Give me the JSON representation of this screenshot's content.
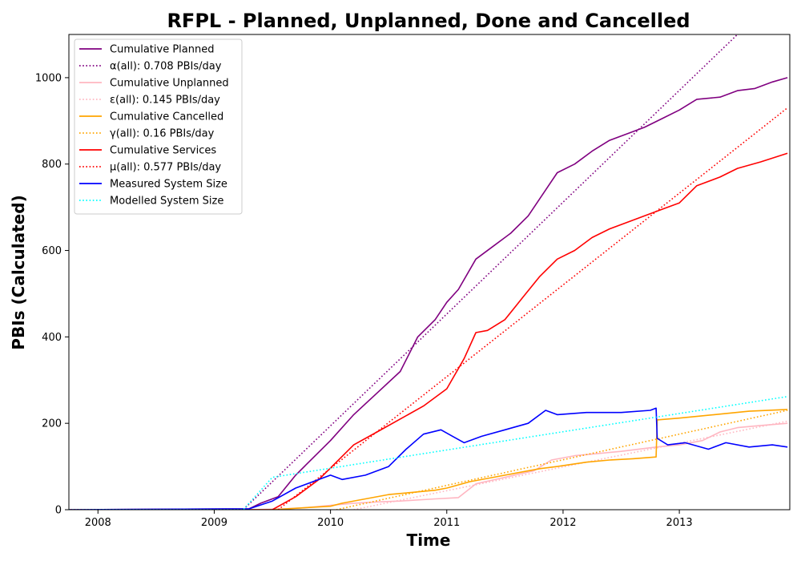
{
  "chart_data": {
    "type": "line",
    "title": "RFPL - Planned, Unplanned, Done  and Cancelled",
    "xlabel": "Time",
    "ylabel": "PBIs (Calculated)",
    "xlim": [
      2007.75,
      2013.95
    ],
    "ylim": [
      0,
      1100
    ],
    "x_ticks": [
      2008,
      2009,
      2010,
      2011,
      2012,
      2013
    ],
    "x_tick_labels": [
      "2008",
      "2009",
      "2010",
      "2011",
      "2012",
      "2013"
    ],
    "y_ticks": [
      0,
      200,
      400,
      600,
      800,
      1000
    ],
    "y_tick_labels": [
      "0",
      "200",
      "400",
      "600",
      "800",
      "1000"
    ],
    "grid": false,
    "legend_position": "upper-left",
    "series": [
      {
        "name": "Cumulative Planned",
        "color": "#800080",
        "style": "solid",
        "x": [
          2007.75,
          2009.3,
          2009.4,
          2009.55,
          2009.7,
          2009.85,
          2010.0,
          2010.2,
          2010.4,
          2010.6,
          2010.75,
          2010.9,
          2011.0,
          2011.1,
          2011.25,
          2011.4,
          2011.55,
          2011.7,
          2011.85,
          2011.95,
          2012.1,
          2012.25,
          2012.4,
          2012.55,
          2012.7,
          2012.85,
          2013.0,
          2013.15,
          2013.35,
          2013.5,
          2013.65,
          2013.8,
          2013.93
        ],
        "y": [
          0,
          2,
          15,
          30,
          80,
          120,
          160,
          220,
          270,
          320,
          400,
          440,
          480,
          510,
          580,
          610,
          640,
          680,
          740,
          780,
          800,
          830,
          855,
          870,
          885,
          905,
          925,
          950,
          955,
          970,
          975,
          990,
          1000
        ]
      },
      {
        "name": "α(all): 0.708 PBIs/day",
        "color": "#800080",
        "style": "dotted",
        "x": [
          2009.25,
          2013.5
        ],
        "y": [
          0,
          1100
        ]
      },
      {
        "name": "Cumulative Unplanned",
        "color": "#ffb6c1",
        "style": "solid",
        "x": [
          2007.75,
          2009.3,
          2009.6,
          2009.8,
          2010.0,
          2010.2,
          2010.4,
          2010.6,
          2010.9,
          2011.1,
          2011.25,
          2011.5,
          2011.75,
          2011.9,
          2012.1,
          2012.3,
          2012.5,
          2012.8,
          2013.0,
          2013.2,
          2013.35,
          2013.5,
          2013.7,
          2013.93
        ],
        "y": [
          0,
          0,
          2,
          5,
          10,
          15,
          18,
          20,
          25,
          28,
          60,
          75,
          90,
          115,
          125,
          130,
          135,
          145,
          150,
          160,
          180,
          190,
          195,
          200
        ]
      },
      {
        "name": "ε(all): 0.145 PBIs/day",
        "color": "#ffb6c1",
        "style": "dotted",
        "x": [
          2010.2,
          2013.93
        ],
        "y": [
          0,
          205
        ]
      },
      {
        "name": "Cumulative Cancelled",
        "color": "#ffa500",
        "style": "solid",
        "x": [
          2007.75,
          2009.5,
          2009.8,
          2010.0,
          2010.1,
          2010.3,
          2010.5,
          2010.7,
          2010.9,
          2011.0,
          2011.2,
          2011.4,
          2011.6,
          2011.8,
          2011.95,
          2012.2,
          2012.4,
          2012.6,
          2012.8,
          2012.81,
          2013.0,
          2013.3,
          2013.6,
          2013.93
        ],
        "y": [
          0,
          0,
          5,
          8,
          15,
          25,
          35,
          40,
          45,
          50,
          65,
          75,
          85,
          95,
          100,
          110,
          115,
          118,
          122,
          208,
          212,
          220,
          228,
          232
        ]
      },
      {
        "name": "γ(all): 0.16 PBIs/day",
        "color": "#ffa500",
        "style": "dotted",
        "x": [
          2010.05,
          2013.93
        ],
        "y": [
          0,
          230
        ]
      },
      {
        "name": "Cumulative Services",
        "color": "#ff0000",
        "style": "solid",
        "x": [
          2007.75,
          2009.5,
          2009.7,
          2009.9,
          2010.05,
          2010.2,
          2010.4,
          2010.6,
          2010.8,
          2011.0,
          2011.15,
          2011.25,
          2011.35,
          2011.5,
          2011.65,
          2011.8,
          2011.95,
          2012.1,
          2012.25,
          2012.4,
          2012.55,
          2012.7,
          2012.85,
          2013.0,
          2013.15,
          2013.35,
          2013.5,
          2013.7,
          2013.93
        ],
        "y": [
          0,
          0,
          30,
          70,
          110,
          150,
          180,
          210,
          240,
          280,
          350,
          410,
          415,
          440,
          490,
          540,
          580,
          600,
          630,
          650,
          665,
          680,
          695,
          710,
          750,
          770,
          790,
          805,
          825
        ]
      },
      {
        "name": "μ(all): 0.577 PBIs/day",
        "color": "#ff0000",
        "style": "dotted",
        "x": [
          2009.55,
          2013.93
        ],
        "y": [
          0,
          930
        ]
      },
      {
        "name": "Measured System Size",
        "color": "#0000ff",
        "style": "solid",
        "x": [
          2007.75,
          2009.3,
          2009.5,
          2009.7,
          2009.9,
          2010.0,
          2010.1,
          2010.3,
          2010.5,
          2010.65,
          2010.8,
          2010.95,
          2011.05,
          2011.15,
          2011.3,
          2011.5,
          2011.7,
          2011.85,
          2011.95,
          2012.2,
          2012.5,
          2012.75,
          2012.8,
          2012.81,
          2012.9,
          2013.05,
          2013.25,
          2013.4,
          2013.6,
          2013.8,
          2013.93
        ],
        "y": [
          0,
          2,
          20,
          50,
          70,
          80,
          70,
          80,
          100,
          140,
          175,
          185,
          170,
          155,
          170,
          185,
          200,
          230,
          220,
          225,
          225,
          230,
          235,
          165,
          150,
          155,
          140,
          155,
          145,
          150,
          145
        ]
      },
      {
        "name": "Modelled System Size",
        "color": "#00ffff",
        "style": "dotted",
        "x": [
          2007.75,
          2009.25,
          2009.5,
          2013.93
        ],
        "y": [
          0,
          0,
          75,
          262
        ]
      }
    ]
  }
}
